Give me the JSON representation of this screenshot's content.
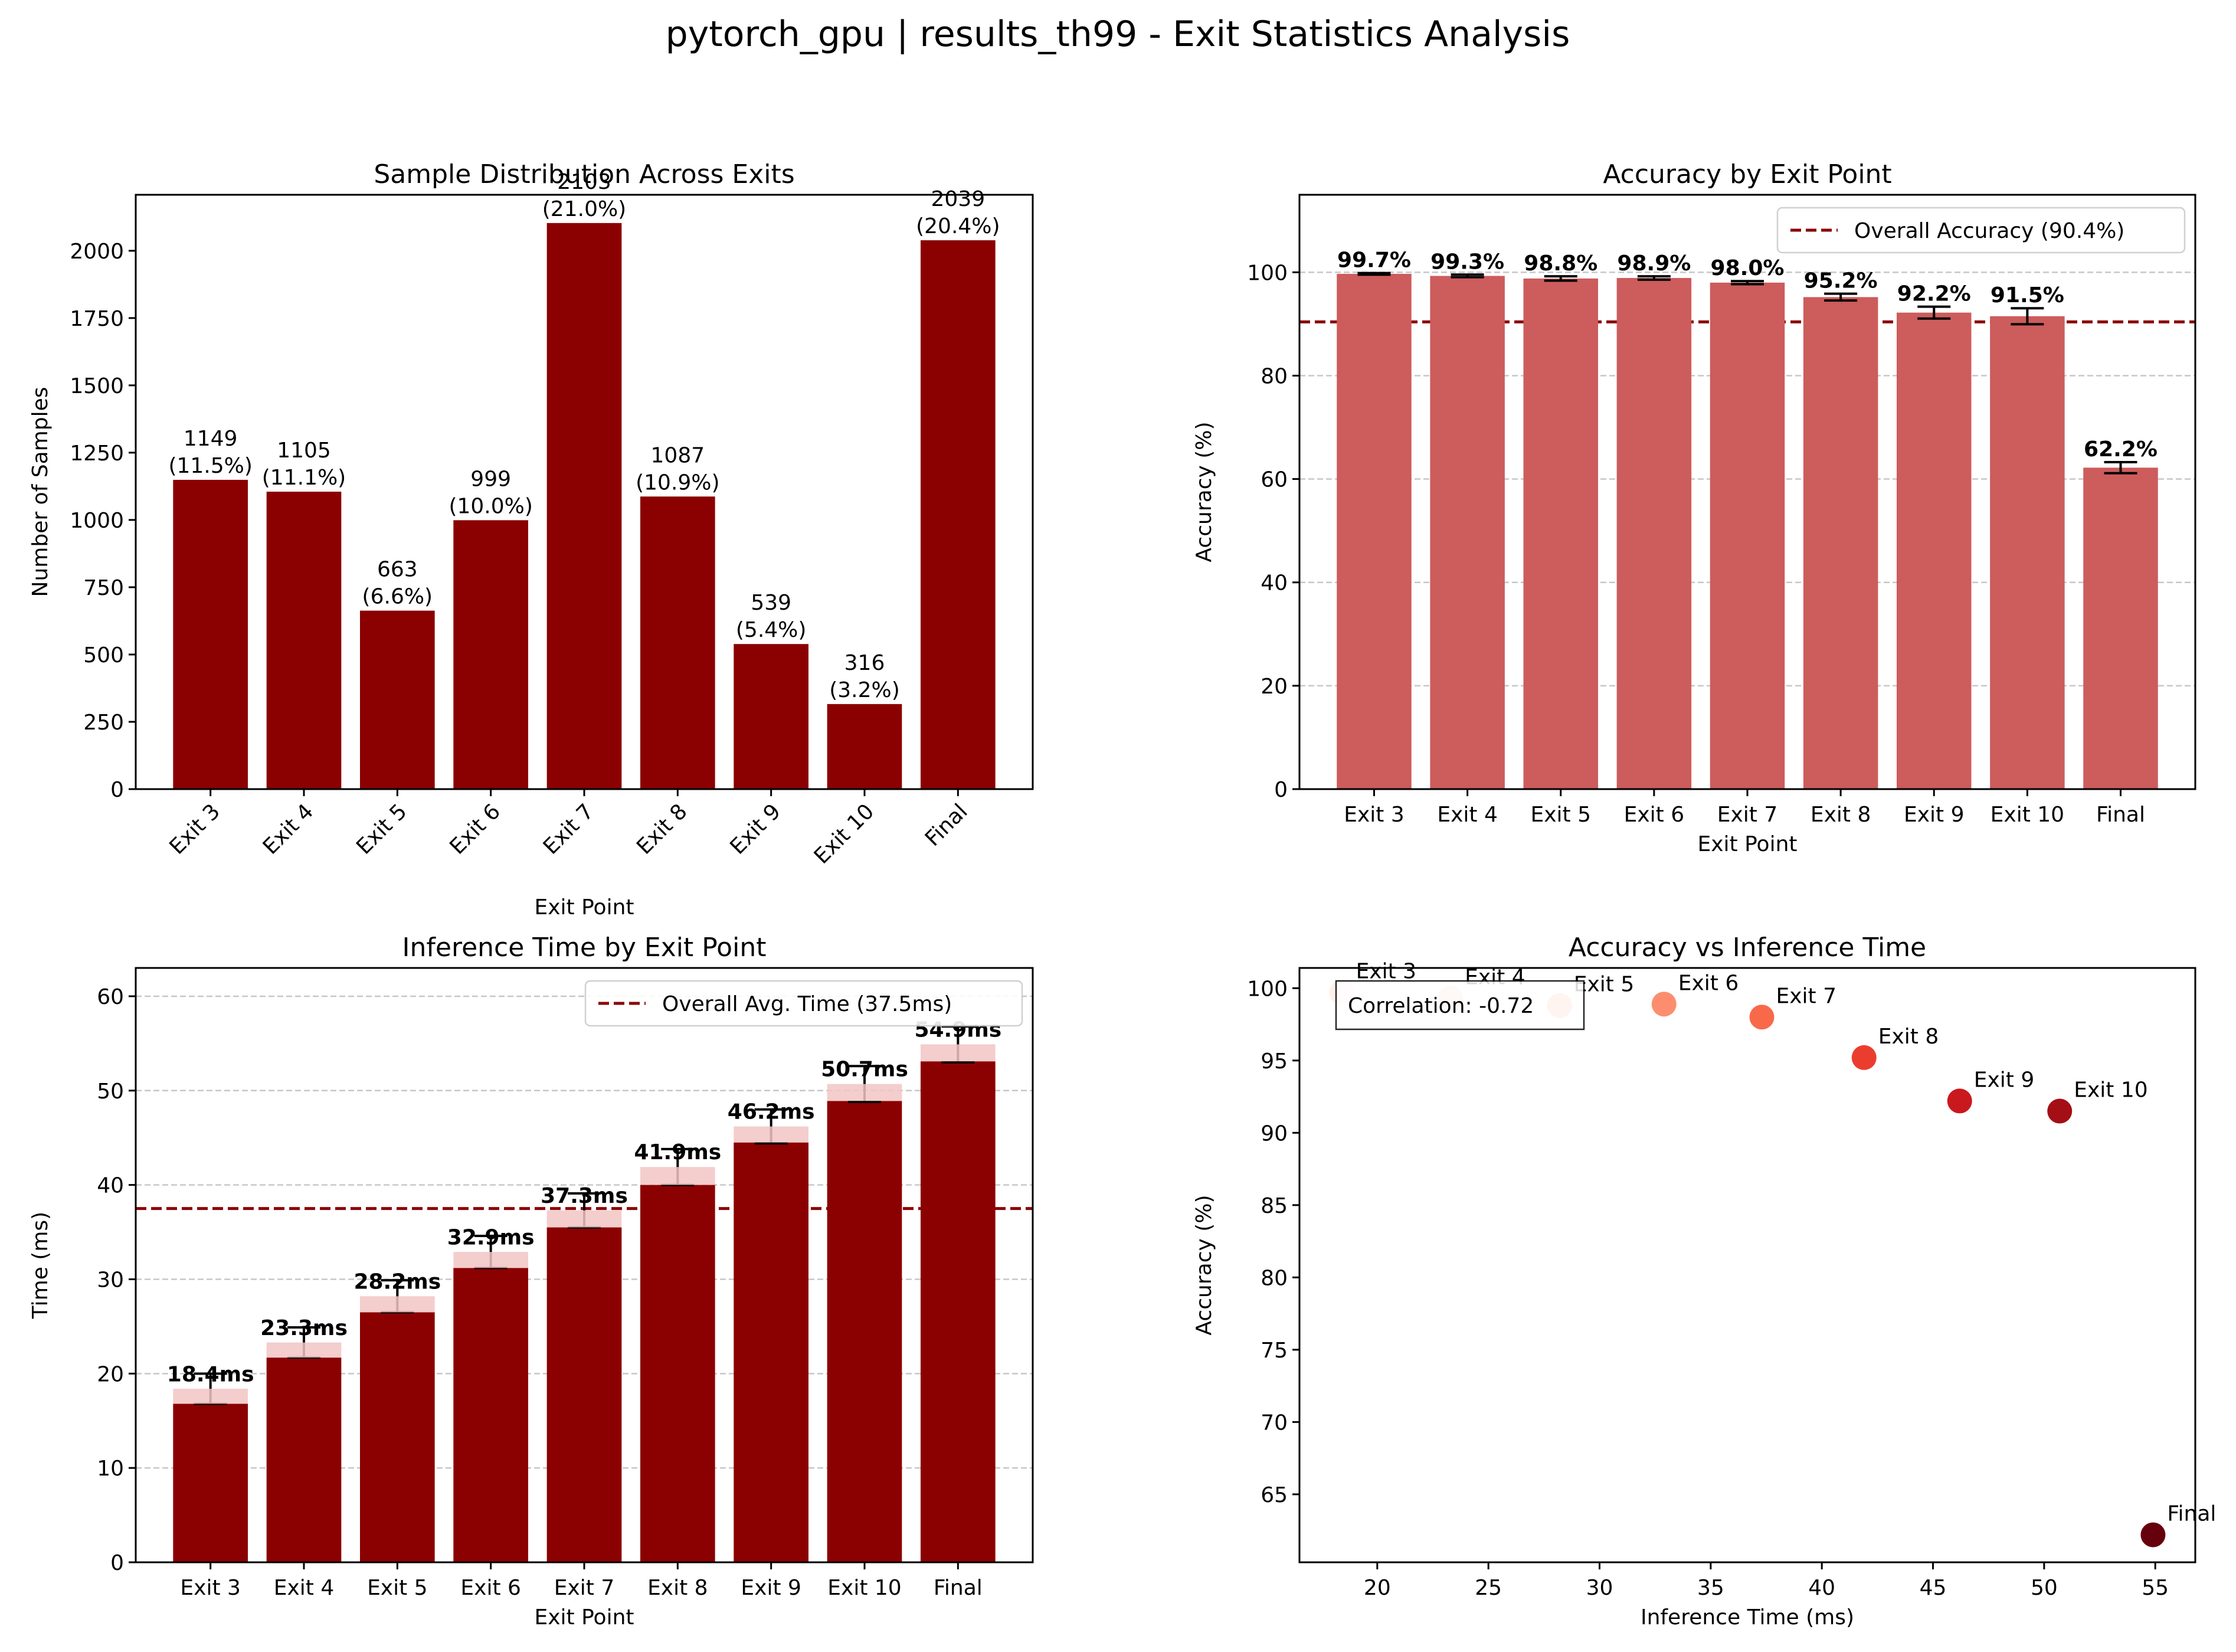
{
  "figure": {
    "title": "pytorch_gpu | results_th99 - Exit Statistics Analysis"
  },
  "chart_data": [
    {
      "type": "bar",
      "title": "Sample Distribution Across Exits",
      "xlabel": "Exit Point",
      "ylabel": "Number of Samples",
      "categories": [
        "Exit 3",
        "Exit 4",
        "Exit 5",
        "Exit 6",
        "Exit 7",
        "Exit 8",
        "Exit 9",
        "Exit 10",
        "Final"
      ],
      "values": [
        1149,
        1105,
        663,
        999,
        2103,
        1087,
        539,
        316,
        2039
      ],
      "value_labels": [
        "1149",
        "1105",
        "663",
        "999",
        "2103",
        "1087",
        "539",
        "316",
        "2039"
      ],
      "pct_labels": [
        "(11.5%)",
        "(11.1%)",
        "(6.6%)",
        "(10.0%)",
        "(21.0%)",
        "(10.9%)",
        "(5.4%)",
        "(3.2%)",
        "(20.4%)"
      ],
      "ylim": [
        0,
        2208
      ],
      "yticks": [
        0,
        250,
        500,
        750,
        1000,
        1250,
        1500,
        1750,
        2000
      ],
      "grid": false,
      "color": "#8b0000",
      "xtick_rotation": 45
    },
    {
      "type": "bar",
      "title": "Accuracy by Exit Point",
      "xlabel": "Exit Point",
      "ylabel": "Accuracy (%)",
      "categories": [
        "Exit 3",
        "Exit 4",
        "Exit 5",
        "Exit 6",
        "Exit 7",
        "Exit 8",
        "Exit 9",
        "Exit 10",
        "Final"
      ],
      "values": [
        99.7,
        99.3,
        98.8,
        98.9,
        98.0,
        95.2,
        92.2,
        91.5,
        62.2
      ],
      "errors": [
        0.16,
        0.25,
        0.42,
        0.33,
        0.3,
        0.65,
        1.15,
        1.55,
        1.07
      ],
      "value_labels": [
        "99.7%",
        "99.3%",
        "98.8%",
        "98.9%",
        "98.0%",
        "95.2%",
        "92.2%",
        "91.5%",
        "62.2%"
      ],
      "ylim": [
        0,
        115
      ],
      "yticks": [
        0,
        20,
        40,
        60,
        80,
        100
      ],
      "grid": "y",
      "color": "#cd5c5c",
      "reference_line": {
        "value": 90.4,
        "label": "Overall Accuracy (90.4%)",
        "color": "#8b0000"
      },
      "legend": "top-right"
    },
    {
      "type": "bar",
      "title": "Inference Time by Exit Point",
      "xlabel": "Exit Point",
      "ylabel": "Time (ms)",
      "categories": [
        "Exit 3",
        "Exit 4",
        "Exit 5",
        "Exit 6",
        "Exit 7",
        "Exit 8",
        "Exit 9",
        "Exit 10",
        "Final"
      ],
      "values": [
        16.8,
        21.7,
        26.5,
        31.2,
        35.5,
        40.0,
        44.5,
        48.9,
        53.1
      ],
      "means": [
        18.4,
        23.3,
        28.2,
        32.9,
        37.3,
        41.9,
        46.2,
        50.7,
        54.9
      ],
      "errors": [
        1.6,
        1.6,
        1.7,
        1.7,
        1.8,
        1.9,
        1.8,
        1.9,
        1.9
      ],
      "value_labels": [
        "18.4ms",
        "23.3ms",
        "28.2ms",
        "32.9ms",
        "37.3ms",
        "41.9ms",
        "46.2ms",
        "50.7ms",
        "54.9ms"
      ],
      "ylim": [
        0,
        63
      ],
      "yticks": [
        0,
        10,
        20,
        30,
        40,
        50,
        60
      ],
      "grid": "y",
      "color": "#8b0000",
      "reference_line": {
        "value": 37.5,
        "label": "Overall Avg. Time (37.5ms)",
        "color": "#8b0000"
      },
      "legend": "top-right"
    },
    {
      "type": "scatter",
      "title": "Accuracy vs Inference Time",
      "xlabel": "Inference Time (ms)",
      "ylabel": "Accuracy (%)",
      "points": [
        {
          "label": "Exit 3",
          "x": 18.4,
          "y": 99.7,
          "color": "#fff0e9"
        },
        {
          "label": "Exit 4",
          "x": 23.3,
          "y": 99.3,
          "color": "#fdd7c5"
        },
        {
          "label": "Exit 5",
          "x": 28.2,
          "y": 98.8,
          "color": "#fcb59a"
        },
        {
          "label": "Exit 6",
          "x": 32.9,
          "y": 98.9,
          "color": "#fc8e6f"
        },
        {
          "label": "Exit 7",
          "x": 37.3,
          "y": 98.0,
          "color": "#f8694a"
        },
        {
          "label": "Exit 8",
          "x": 41.9,
          "y": 95.2,
          "color": "#eb3d2e"
        },
        {
          "label": "Exit 9",
          "x": 46.2,
          "y": 92.2,
          "color": "#c9191e"
        },
        {
          "label": "Exit 10",
          "x": 50.7,
          "y": 91.5,
          "color": "#a30f15"
        },
        {
          "label": "Final",
          "x": 54.9,
          "y": 62.2,
          "color": "#67000d"
        }
      ],
      "xlim": [
        16.5,
        56.8
      ],
      "ylim": [
        60.3,
        101.4
      ],
      "xticks": [
        20,
        25,
        30,
        35,
        40,
        45,
        50,
        55
      ],
      "yticks": [
        65,
        70,
        75,
        80,
        85,
        90,
        95,
        100
      ],
      "grid": false,
      "annotation": "Correlation: -0.72",
      "annotation_position": "top-left"
    }
  ]
}
